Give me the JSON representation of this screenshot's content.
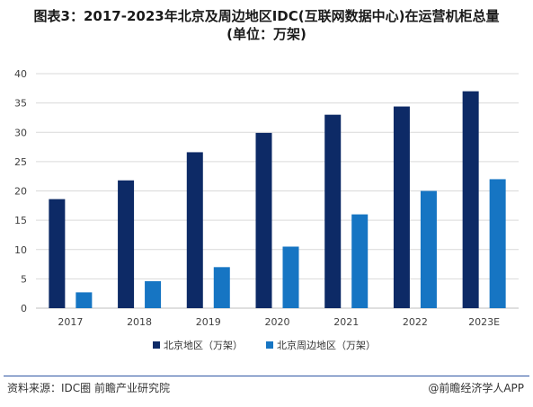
{
  "title_line1": "图表3：2017-2023年北京及周边地区IDC(互联网数据中心)在运营机柜总量",
  "title_line2": "(单位：万架)",
  "source_text": "资料来源：IDC圈 前瞻产业研究院",
  "brand_text": "@前瞻经济学人APP",
  "colors": {
    "beijing": "#0d2a66",
    "surrounding": "#1675c3"
  },
  "chart_data": {
    "type": "bar",
    "categories": [
      "2017",
      "2018",
      "2019",
      "2020",
      "2021",
      "2022",
      "2023E"
    ],
    "series": [
      {
        "name": "北京地区（万架）",
        "values": [
          18.6,
          21.8,
          26.6,
          29.9,
          33.0,
          34.4,
          37.0
        ]
      },
      {
        "name": "北京周边地区（万架）",
        "values": [
          2.7,
          4.6,
          7.0,
          10.5,
          16.0,
          20.0,
          22.0
        ]
      }
    ],
    "y_ticks": [
      0,
      5,
      10,
      15,
      20,
      25,
      30,
      35,
      40
    ],
    "ylim": [
      0,
      40
    ],
    "grid": true,
    "legend_position": "bottom"
  }
}
